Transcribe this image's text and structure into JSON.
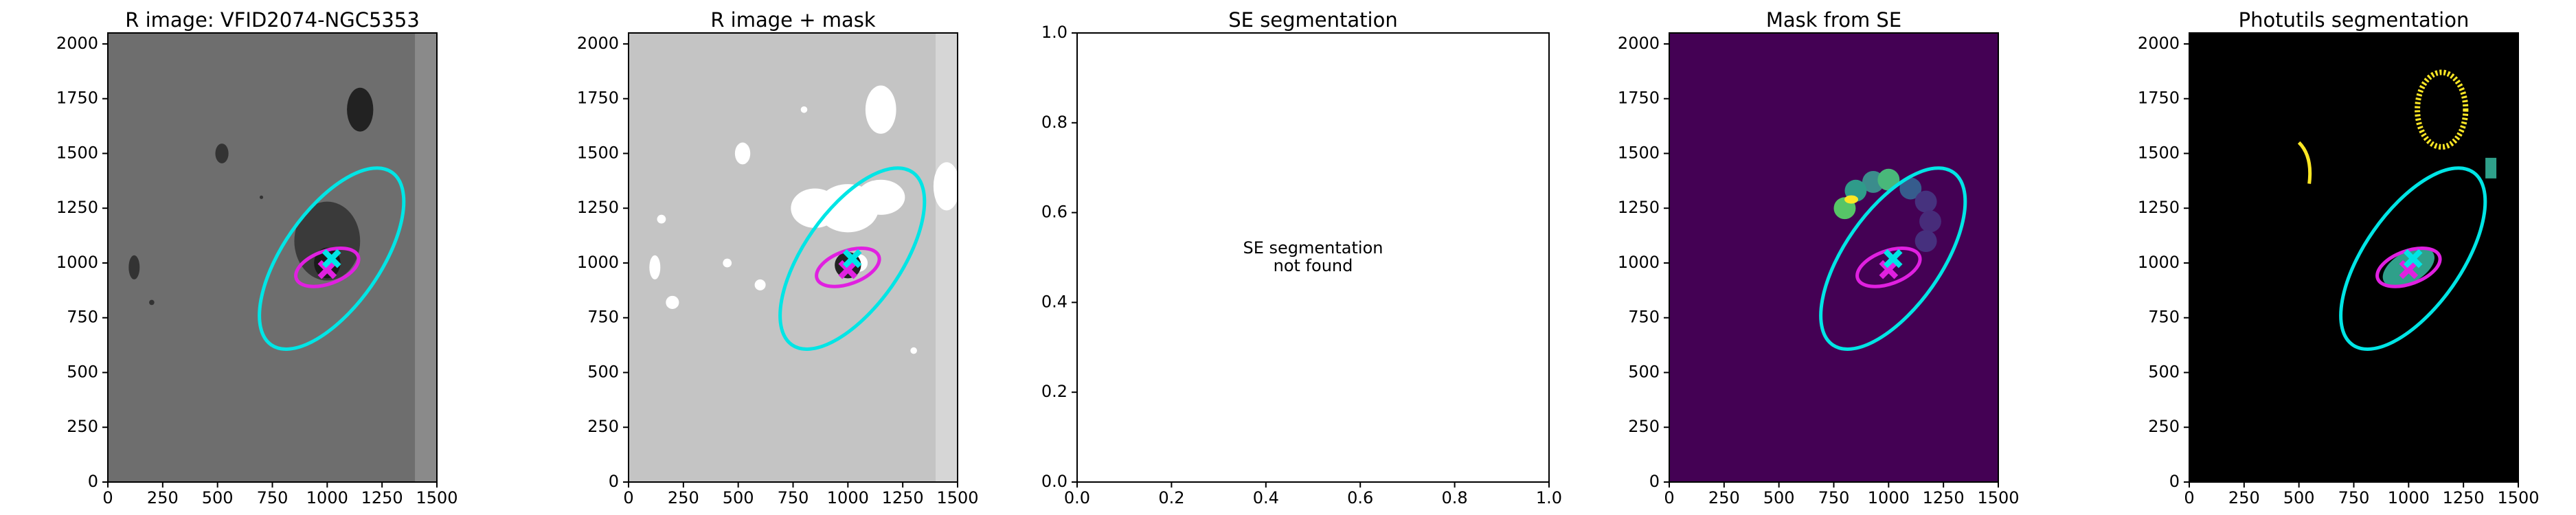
{
  "chart_data": [
    {
      "type": "image",
      "title": "R image: VFID2074-NGC5353",
      "background": "#6e6e6e",
      "xlim": [
        0,
        1500
      ],
      "ylim": [
        0,
        2050
      ],
      "xticks": [
        0,
        250,
        500,
        750,
        1000,
        1250,
        1500
      ],
      "yticks": [
        0,
        250,
        500,
        750,
        1000,
        1250,
        1500,
        1750,
        2000
      ],
      "ellipses": [
        {
          "color": "#00e5e5",
          "cx": 1020,
          "cy": 1020,
          "rx": 480,
          "ry": 220,
          "angle": 55
        },
        {
          "color": "#e020e0",
          "cx": 1000,
          "cy": 980,
          "rx": 150,
          "ry": 75,
          "angle": 20
        }
      ],
      "markers": [
        {
          "color": "#e020e0",
          "x": 1000,
          "y": 970
        },
        {
          "color": "#00e5e5",
          "x": 1020,
          "y": 1020
        }
      ]
    },
    {
      "type": "image",
      "title": "R image + mask",
      "background": "#c4c4c4",
      "xlim": [
        0,
        1500
      ],
      "ylim": [
        0,
        2050
      ],
      "xticks": [
        0,
        250,
        500,
        750,
        1000,
        1250,
        1500
      ],
      "yticks": [
        0,
        250,
        500,
        750,
        1000,
        1250,
        1500,
        1750,
        2000
      ],
      "ellipses": [
        {
          "color": "#00e5e5",
          "cx": 1020,
          "cy": 1020,
          "rx": 480,
          "ry": 220,
          "angle": 55
        },
        {
          "color": "#e020e0",
          "cx": 1000,
          "cy": 980,
          "rx": 150,
          "ry": 75,
          "angle": 20
        }
      ],
      "markers": [
        {
          "color": "#e020e0",
          "x": 1000,
          "y": 970
        },
        {
          "color": "#00e5e5",
          "x": 1020,
          "y": 1020
        }
      ]
    },
    {
      "type": "empty",
      "title": "SE segmentation",
      "background": "#ffffff",
      "message": [
        "SE segmentation",
        "not found"
      ],
      "xlim": [
        0,
        1
      ],
      "ylim": [
        0,
        1
      ],
      "xticks": [
        {
          "value": 0,
          "label": "0.0"
        },
        {
          "value": 0.2,
          "label": "0.2"
        },
        {
          "value": 0.4,
          "label": "0.4"
        },
        {
          "value": 0.6,
          "label": "0.6"
        },
        {
          "value": 0.8,
          "label": "0.8"
        },
        {
          "value": 1,
          "label": "1.0"
        }
      ],
      "yticks": [
        {
          "value": 0,
          "label": "0.0"
        },
        {
          "value": 0.2,
          "label": "0.2"
        },
        {
          "value": 0.4,
          "label": "0.4"
        },
        {
          "value": 0.6,
          "label": "0.6"
        },
        {
          "value": 0.8,
          "label": "0.8"
        },
        {
          "value": 1,
          "label": "1.0"
        }
      ]
    },
    {
      "type": "image",
      "title": "Mask from SE",
      "background": "#440154",
      "xlim": [
        0,
        1500
      ],
      "ylim": [
        0,
        2050
      ],
      "xticks": [
        0,
        250,
        500,
        750,
        1000,
        1250,
        1500
      ],
      "yticks": [
        0,
        250,
        500,
        750,
        1000,
        1250,
        1500,
        1750,
        2000
      ],
      "ellipses": [
        {
          "color": "#00e5e5",
          "cx": 1020,
          "cy": 1020,
          "rx": 480,
          "ry": 220,
          "angle": 55
        },
        {
          "color": "#e020e0",
          "cx": 1000,
          "cy": 980,
          "rx": 150,
          "ry": 75,
          "angle": 20
        }
      ],
      "markers": [
        {
          "color": "#e020e0",
          "x": 1000,
          "y": 970
        },
        {
          "color": "#00e5e5",
          "x": 1020,
          "y": 1020
        }
      ]
    },
    {
      "type": "image",
      "title": "Photutils segmentation",
      "background": "#000000",
      "xlim": [
        0,
        1500
      ],
      "ylim": [
        0,
        2050
      ],
      "xticks": [
        0,
        250,
        500,
        750,
        1000,
        1250,
        1500
      ],
      "yticks": [
        0,
        250,
        500,
        750,
        1000,
        1250,
        1500,
        1750,
        2000
      ],
      "ellipses": [
        {
          "color": "#00e5e5",
          "cx": 1020,
          "cy": 1020,
          "rx": 480,
          "ry": 220,
          "angle": 55
        },
        {
          "color": "#e020e0",
          "cx": 1000,
          "cy": 980,
          "rx": 150,
          "ry": 75,
          "angle": 20
        }
      ],
      "markers": [
        {
          "color": "#e020e0",
          "x": 1000,
          "y": 970
        },
        {
          "color": "#00e5e5",
          "x": 1020,
          "y": 1020
        }
      ]
    }
  ]
}
